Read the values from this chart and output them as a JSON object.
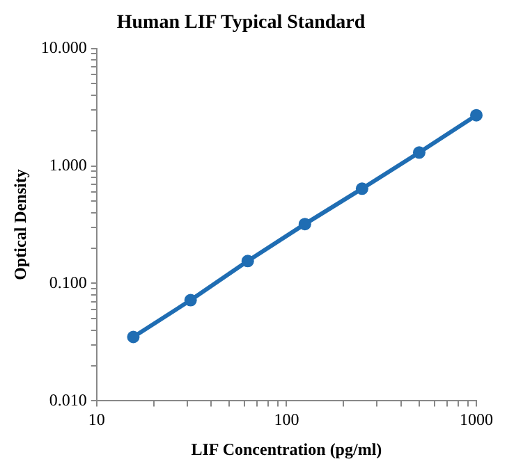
{
  "chart_data": {
    "type": "line",
    "title": "Human LIF Typical Standard",
    "xlabel": "LIF Concentration (pg/ml)",
    "ylabel": "Optical Density",
    "x": [
      15.6,
      31.25,
      62.5,
      125,
      250,
      500,
      1000
    ],
    "series": [
      {
        "color": "#1f6db3",
        "values": [
          0.035,
          0.072,
          0.155,
          0.32,
          0.64,
          1.3,
          2.7
        ]
      }
    ],
    "log": "xy",
    "marker": "circle",
    "line_style": "solid",
    "grid": false,
    "legend": false,
    "xlim": [
      10,
      1000
    ],
    "xticks": [
      10,
      {
        "value": 20,
        "label": null
      },
      {
        "value": 30,
        "label": null
      },
      {
        "value": 40,
        "label": null
      },
      {
        "value": 50,
        "label": null
      },
      {
        "value": 60,
        "label": null
      },
      {
        "value": 70,
        "label": null
      },
      {
        "value": 80,
        "label": null
      },
      {
        "value": 90,
        "label": null
      },
      100,
      {
        "value": 200,
        "label": null
      },
      {
        "value": 300,
        "label": null
      },
      {
        "value": 400,
        "label": null
      },
      {
        "value": 500,
        "label": null
      },
      {
        "value": 600,
        "label": null
      },
      {
        "value": 700,
        "label": null
      },
      {
        "value": 800,
        "label": null
      },
      {
        "value": 900,
        "label": null
      },
      1000
    ],
    "ylim": [
      0.01,
      10
    ],
    "yticks": [
      {
        "value": 0.01,
        "label": "0.010"
      },
      {
        "value": 0.02,
        "label": null
      },
      {
        "value": 0.03,
        "label": null
      },
      {
        "value": 0.04,
        "label": null
      },
      {
        "value": 0.05,
        "label": null
      },
      {
        "value": 0.06,
        "label": null
      },
      {
        "value": 0.07,
        "label": null
      },
      {
        "value": 0.08,
        "label": null
      },
      {
        "value": 0.09,
        "label": null
      },
      {
        "value": 0.1,
        "label": "0.100"
      },
      {
        "value": 0.2,
        "label": null
      },
      {
        "value": 0.3,
        "label": null
      },
      {
        "value": 0.4,
        "label": null
      },
      {
        "value": 0.5,
        "label": null
      },
      {
        "value": 0.6,
        "label": null
      },
      {
        "value": 0.7,
        "label": null
      },
      {
        "value": 0.8,
        "label": null
      },
      {
        "value": 0.9,
        "label": null
      },
      {
        "value": 1,
        "label": "1.000"
      },
      {
        "value": 2,
        "label": null
      },
      {
        "value": 3,
        "label": null
      },
      {
        "value": 4,
        "label": null
      },
      {
        "value": 5,
        "label": null
      },
      {
        "value": 6,
        "label": null
      },
      {
        "value": 7,
        "label": null
      },
      {
        "value": 8,
        "label": null
      },
      {
        "value": 9,
        "label": null
      },
      {
        "value": 10,
        "label": "10.000"
      }
    ]
  }
}
